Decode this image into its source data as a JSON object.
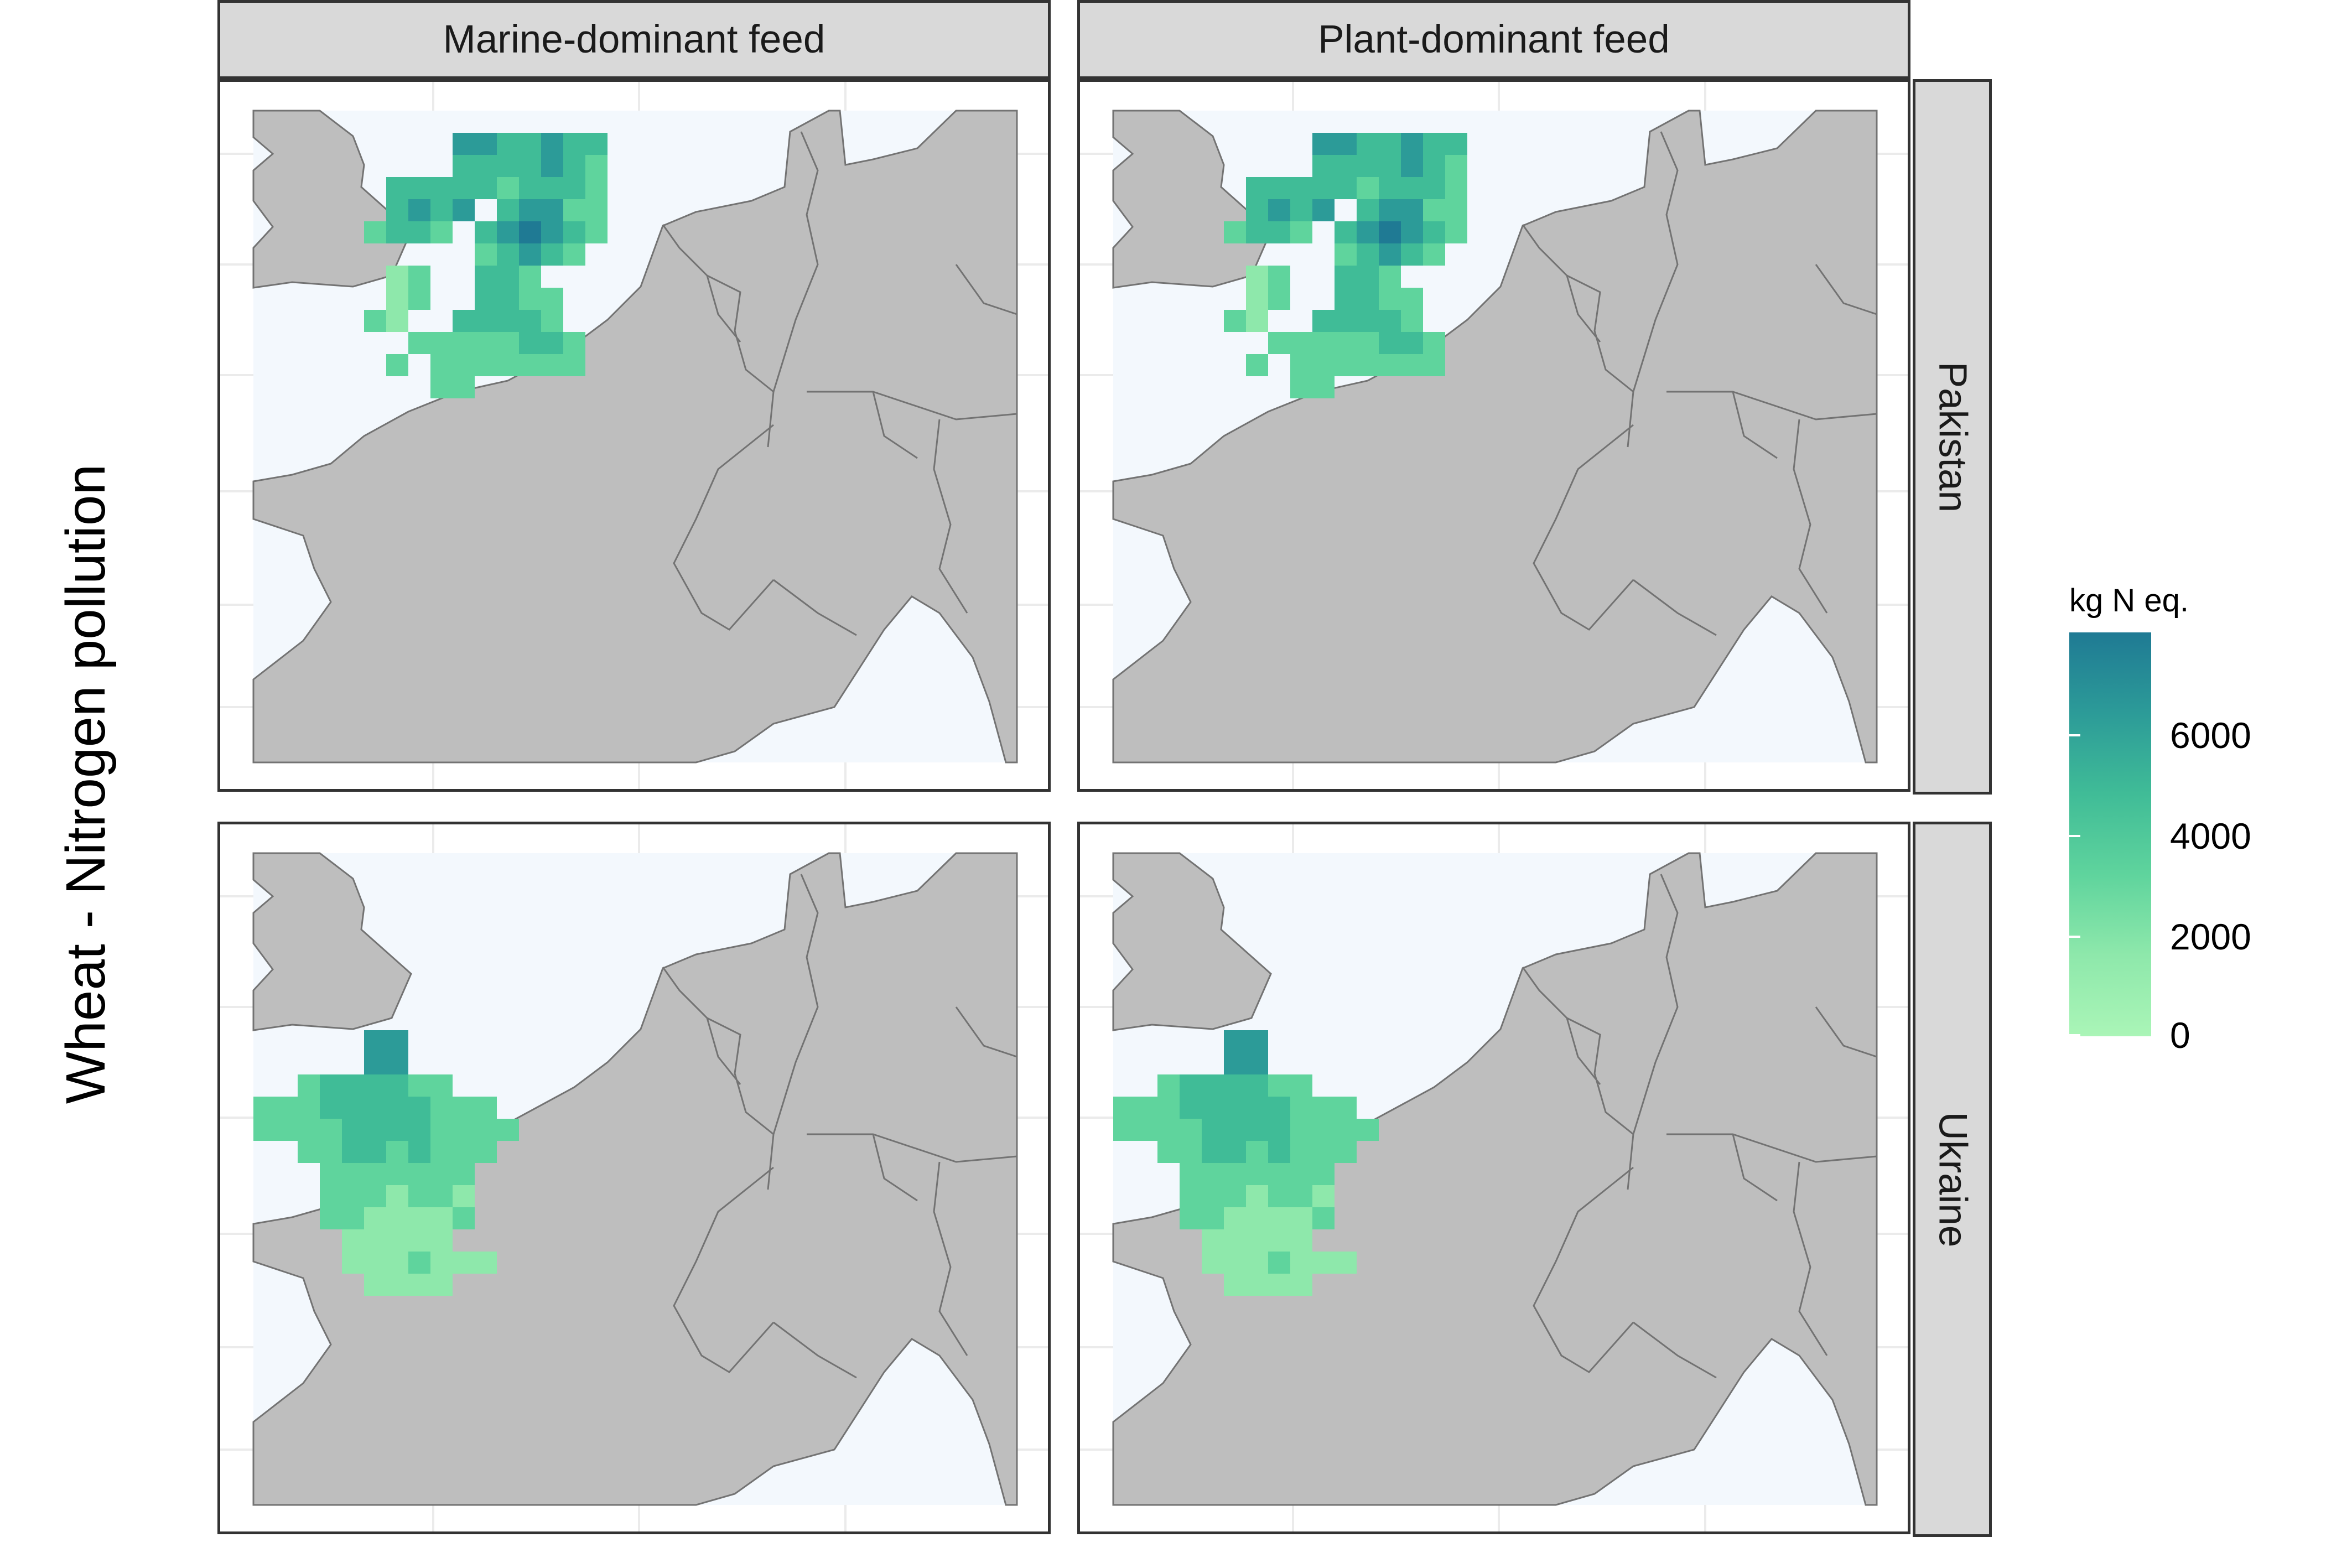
{
  "map": {
    "title": "Wheat - Nitrogen pollution",
    "columns": [
      "Marine-dominant feed",
      "Plant-dominant feed"
    ],
    "rows": [
      "Pakistan",
      "Ukraine"
    ],
    "legend": {
      "title": "kg N eq.",
      "ticks": [
        "6000",
        "4000",
        "2000",
        "0"
      ],
      "colors": [
        "#aaf5b7",
        "#8ee8ab",
        "#5fd49d",
        "#40bc97",
        "#2c9b98",
        "#1f7a94"
      ],
      "min": 0,
      "max": 8000
    },
    "colors": {
      "land": "#bebebe",
      "water": "#f3f8fd",
      "border": "#737373",
      "grid": "#ebebeb"
    }
  }
}
